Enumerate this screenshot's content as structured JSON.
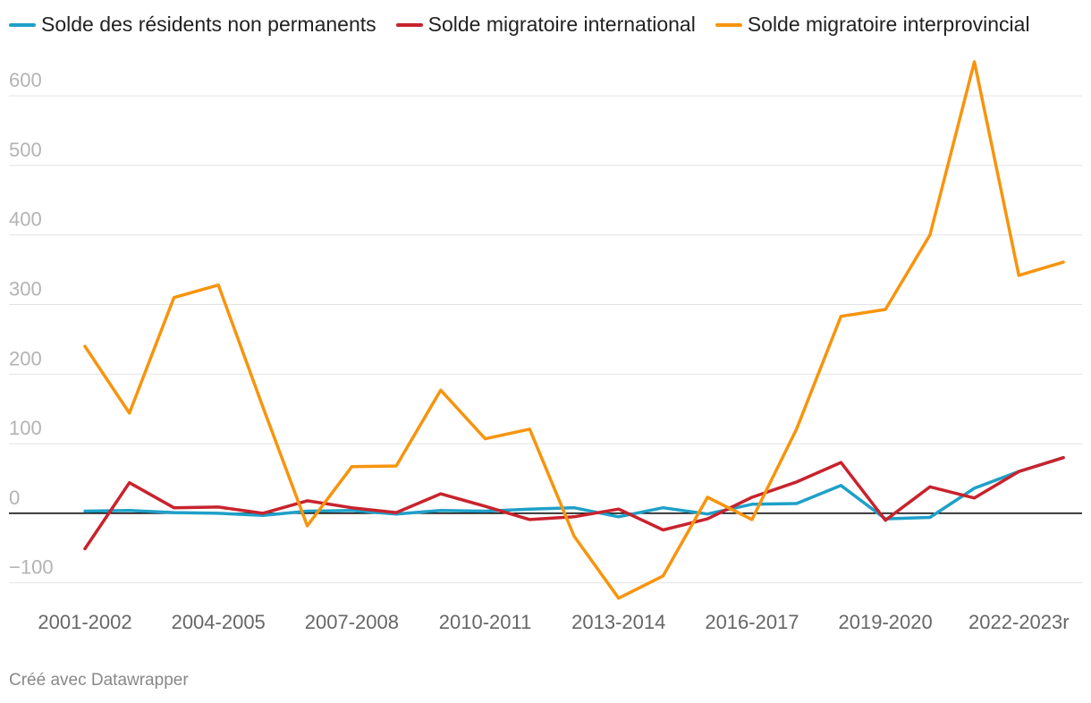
{
  "chart_data": {
    "type": "line",
    "categories": [
      "2001-2002",
      null,
      null,
      "2004-2005",
      null,
      null,
      "2007-2008",
      null,
      null,
      "2010-2011",
      null,
      null,
      "2013-2014",
      null,
      null,
      "2016-2017",
      null,
      null,
      "2019-2020",
      null,
      null,
      "2022-2023r",
      null
    ],
    "series": [
      {
        "name": "Solde des résidents non permanents",
        "color": "#1ea0c8",
        "values": [
          3,
          4,
          1,
          0,
          -3,
          3,
          4,
          -1,
          4,
          3,
          6,
          8,
          -5,
          8,
          -1,
          13,
          14,
          40,
          -8,
          -6,
          36,
          60,
          80
        ]
      },
      {
        "name": "Solde migratoire international",
        "color": "#c8232d",
        "values": [
          -51,
          44,
          8,
          9,
          0,
          18,
          8,
          1,
          28,
          10,
          -9,
          -5,
          6,
          -24,
          -8,
          23,
          45,
          73,
          -10,
          38,
          22,
          60,
          80
        ]
      },
      {
        "name": "Solde migratoire interprovincial",
        "color": "#f7940d",
        "values": [
          240,
          144,
          310,
          328,
          153,
          -18,
          67,
          68,
          177,
          107,
          121,
          -33,
          -122,
          -90,
          23,
          -9,
          121,
          283,
          293,
          400,
          649,
          342,
          361
        ]
      }
    ],
    "ylim": [
      -130,
      660
    ],
    "yticks": [
      {
        "value": -100,
        "label": "−100"
      },
      0,
      100,
      200,
      300,
      400,
      500,
      600
    ],
    "grid": true,
    "footer": "Créé avec Datawrapper"
  }
}
